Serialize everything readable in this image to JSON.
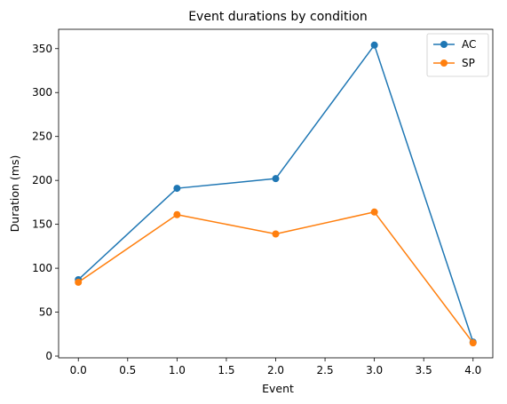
{
  "chart_data": {
    "type": "line",
    "title": "Event durations by condition",
    "xlabel": "Event",
    "ylabel": "Duration (ms)",
    "xlim": [
      -0.2,
      4.2
    ],
    "ylim": [
      -2,
      372
    ],
    "xticks": [
      0.0,
      0.5,
      1.0,
      1.5,
      2.0,
      2.5,
      3.0,
      3.5,
      4.0
    ],
    "xtick_labels": [
      "0.0",
      "0.5",
      "1.0",
      "1.5",
      "2.0",
      "2.5",
      "3.0",
      "3.5",
      "4.0"
    ],
    "yticks": [
      0,
      50,
      100,
      150,
      200,
      250,
      300,
      350
    ],
    "ytick_labels": [
      "0",
      "50",
      "100",
      "150",
      "200",
      "250",
      "300",
      "350"
    ],
    "grid": false,
    "legend_position": "top-right",
    "series": [
      {
        "name": "AC",
        "color": "#1f77b4",
        "marker": "circle",
        "x": [
          0,
          1,
          2,
          3,
          4
        ],
        "values": [
          87,
          191,
          202,
          354,
          16
        ]
      },
      {
        "name": "SP",
        "color": "#ff7f0e",
        "marker": "circle",
        "x": [
          0,
          1,
          2,
          3,
          4
        ],
        "values": [
          84,
          161,
          139,
          164,
          15
        ]
      }
    ]
  }
}
